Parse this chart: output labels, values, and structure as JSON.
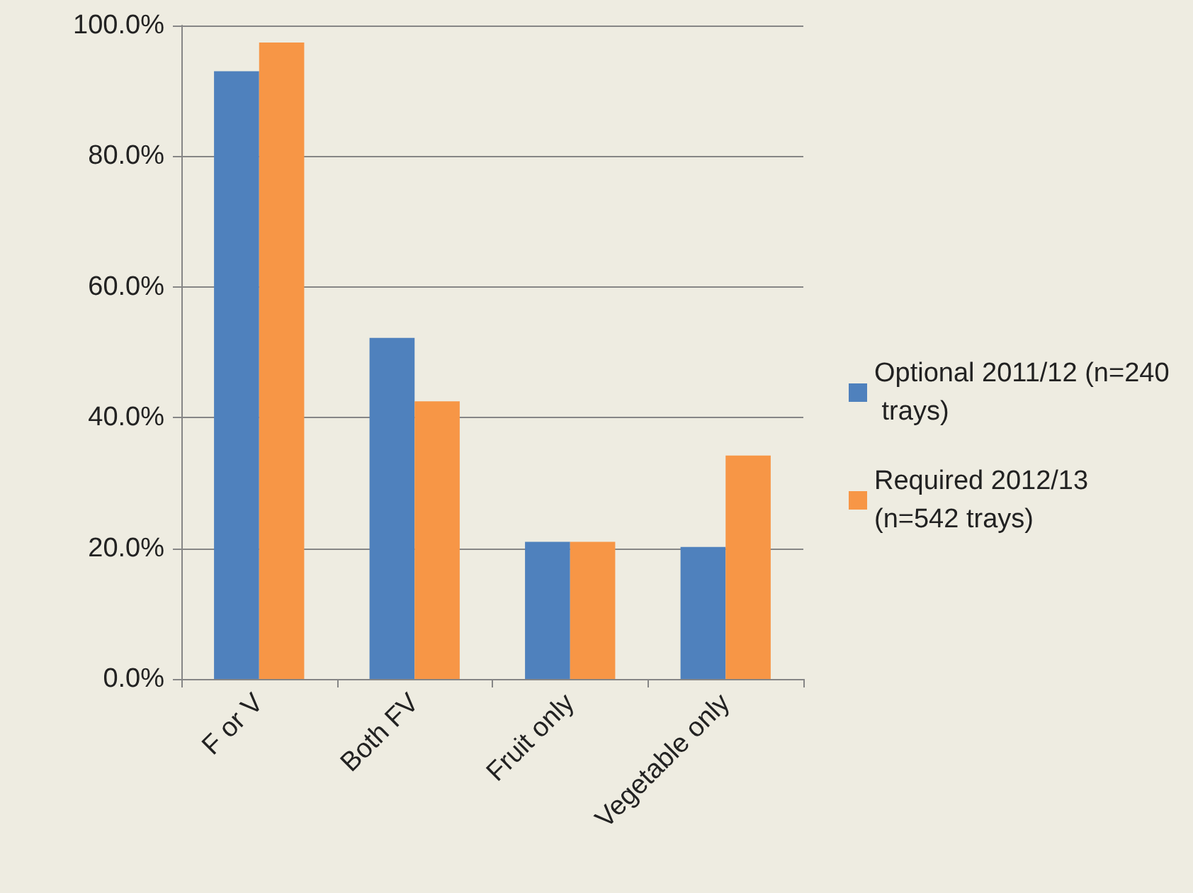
{
  "chart_data": {
    "type": "bar",
    "categories": [
      "F or V",
      "Both FV",
      "Fruit only",
      "Vegetable only"
    ],
    "series": [
      {
        "name": "Optional 2011/12 (n=240 trays)",
        "color": "#4f81bd",
        "values": [
          93.0,
          52.2,
          21.0,
          20.2
        ]
      },
      {
        "name": "Required 2012/13 (n=542 trays)",
        "color": "#f79646",
        "values": [
          97.4,
          42.5,
          21.0,
          34.2
        ]
      }
    ],
    "ylim": [
      0,
      100
    ],
    "yticks": [
      {
        "value": 0,
        "label": "0.0%"
      },
      {
        "value": 20,
        "label": "20.0%"
      },
      {
        "value": 40,
        "label": "40.0%"
      },
      {
        "value": 60,
        "label": "60.0%"
      },
      {
        "value": 80,
        "label": "80.0%"
      },
      {
        "value": 100,
        "label": "100.0%"
      }
    ],
    "grid": "y",
    "legend": "right"
  }
}
